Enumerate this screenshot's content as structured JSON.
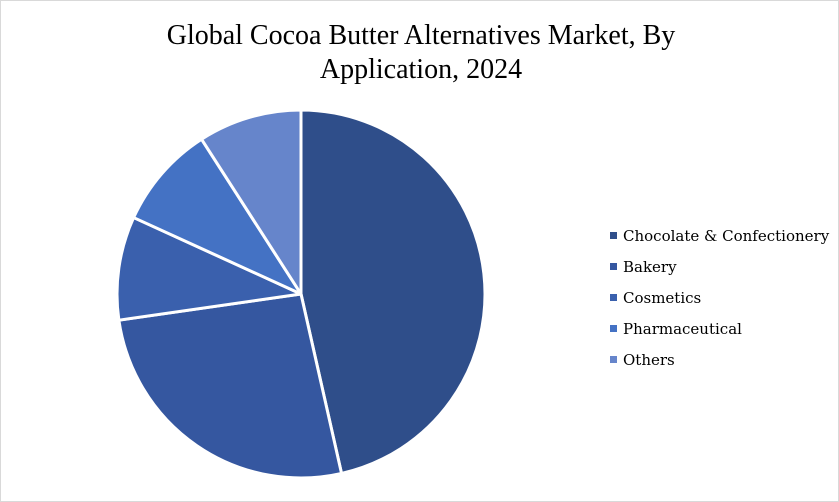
{
  "chart_data": {
    "type": "pie",
    "title": "Global Cocoa Butter Alternatives Market, By Application, 2024",
    "title_lines": [
      "Global Cocoa Butter Alternatives Market, By",
      "Application, 2024"
    ],
    "categories": [
      "Chocolate & Confectionery",
      "Bakery",
      "Cosmetics",
      "Pharmaceutical",
      "Others"
    ],
    "values": [
      46,
      26,
      9,
      9,
      9
    ],
    "colors": [
      "#2F4E8A",
      "#3557A0",
      "#3A60AD",
      "#4472C4",
      "#6685CB"
    ],
    "legend_position": "right",
    "start_angle": "12 o'clock",
    "direction": "clockwise"
  }
}
